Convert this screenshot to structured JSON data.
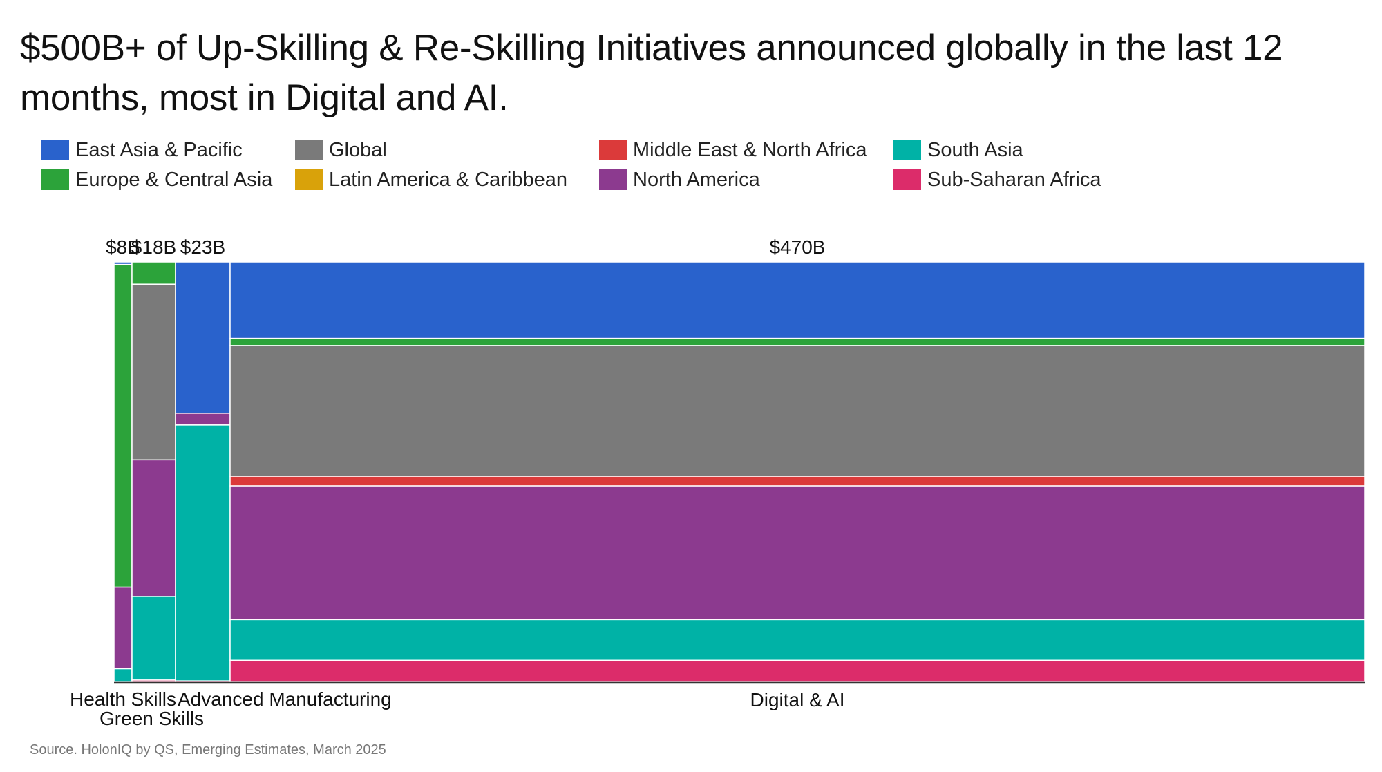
{
  "title": "$500B+ of Up-Skilling & Re-Skilling Initiatives announced globally in the last 12 months, most in Digital and AI.",
  "source": "Source. HolonIQ by QS, Emerging Estimates, March 2025",
  "chart_data": {
    "type": "marimekko",
    "title": "$500B+ of Up-Skilling & Re-Skilling Initiatives announced globally in the last 12 months, most in Digital and AI.",
    "legend_position": "top",
    "series": [
      {
        "name": "East Asia & Pacific",
        "color": "#2962CC"
      },
      {
        "name": "Europe & Central Asia",
        "color": "#2CA33A"
      },
      {
        "name": "Global",
        "color": "#7A7A7A"
      },
      {
        "name": "Latin America & Caribbean",
        "color": "#D9A20A"
      },
      {
        "name": "Middle East & North Africa",
        "color": "#DB3A3A"
      },
      {
        "name": "North America",
        "color": "#8C3A8F"
      },
      {
        "name": "South Asia",
        "color": "#00B2A6"
      },
      {
        "name": "Sub-Saharan Africa",
        "color": "#DC2C6A"
      }
    ],
    "categories": [
      {
        "name": "Health Skills",
        "total_label": "$8B",
        "total": 8,
        "shares": [
          0.006,
          0.768,
          0.0,
          0.0,
          0.0,
          0.194,
          0.032,
          0.0
        ]
      },
      {
        "name": "Green Skills",
        "total_label": "$18B",
        "total": 18,
        "shares": [
          0.0,
          0.053,
          0.418,
          0.0,
          0.0,
          0.325,
          0.199,
          0.005
        ]
      },
      {
        "name": "Advanced Manufacturing",
        "total_label": "$23B",
        "total": 23,
        "shares": [
          0.36,
          0.0,
          0.0,
          0.0,
          0.0,
          0.028,
          0.609,
          0.003
        ]
      },
      {
        "name": "Digital & AI",
        "total_label": "$470B",
        "total": 470,
        "shares": [
          0.182,
          0.017,
          0.311,
          0.0,
          0.023,
          0.318,
          0.097,
          0.052
        ]
      }
    ],
    "ylim": [
      0,
      1
    ]
  }
}
